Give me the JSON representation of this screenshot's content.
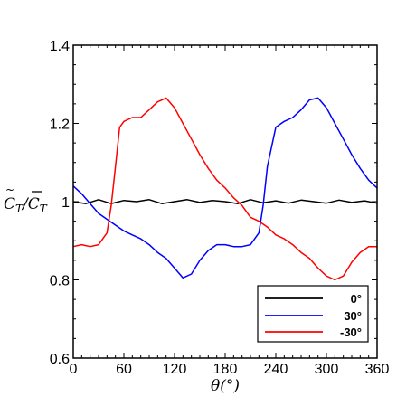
{
  "chart_data": {
    "type": "line",
    "xlabel": "θ(°)",
    "ylabel": "C̃_T/C̄_T",
    "xlim": [
      0,
      360
    ],
    "ylim": [
      0.6,
      1.4
    ],
    "x_ticks": [
      "0",
      "60",
      "120",
      "180",
      "240",
      "300",
      "360"
    ],
    "y_ticks": [
      "0.6",
      "0.8",
      "1",
      "1.2",
      "1.4"
    ],
    "grid": false,
    "legend_position": "bottom-right",
    "series": [
      {
        "name": "0°",
        "color": "#000000",
        "x": [
          0,
          15,
          30,
          45,
          60,
          75,
          90,
          105,
          120,
          135,
          150,
          165,
          180,
          195,
          210,
          225,
          240,
          255,
          270,
          285,
          300,
          315,
          330,
          345,
          360
        ],
        "y": [
          1.0,
          0.995,
          1.005,
          0.995,
          1.003,
          1.0,
          1.005,
          0.995,
          1.0,
          1.005,
          0.998,
          1.003,
          1.0,
          0.995,
          1.005,
          0.997,
          1.002,
          0.996,
          1.004,
          1.0,
          0.996,
          1.004,
          0.998,
          1.002,
          0.996
        ]
      },
      {
        "name": "30°",
        "color": "#0000ff",
        "x": [
          0,
          10,
          20,
          30,
          40,
          50,
          60,
          70,
          80,
          90,
          100,
          110,
          120,
          130,
          140,
          150,
          160,
          170,
          180,
          190,
          200,
          210,
          220,
          225,
          230,
          240,
          250,
          260,
          270,
          280,
          290,
          300,
          310,
          320,
          330,
          340,
          350,
          360
        ],
        "y": [
          1.04,
          1.02,
          0.995,
          0.97,
          0.955,
          0.94,
          0.925,
          0.915,
          0.905,
          0.89,
          0.87,
          0.855,
          0.83,
          0.805,
          0.815,
          0.85,
          0.875,
          0.89,
          0.89,
          0.885,
          0.885,
          0.89,
          0.92,
          0.99,
          1.09,
          1.19,
          1.205,
          1.215,
          1.235,
          1.26,
          1.265,
          1.24,
          1.2,
          1.16,
          1.12,
          1.085,
          1.055,
          1.035
        ]
      },
      {
        "name": "-30°",
        "color": "#ff0000",
        "x": [
          0,
          10,
          20,
          30,
          40,
          45,
          50,
          55,
          60,
          70,
          80,
          90,
          100,
          110,
          120,
          130,
          140,
          150,
          160,
          170,
          180,
          190,
          200,
          210,
          220,
          230,
          240,
          250,
          260,
          270,
          280,
          290,
          300,
          310,
          320,
          330,
          340,
          350,
          360
        ],
        "y": [
          0.885,
          0.89,
          0.885,
          0.89,
          0.92,
          0.99,
          1.09,
          1.19,
          1.205,
          1.215,
          1.215,
          1.235,
          1.255,
          1.265,
          1.24,
          1.2,
          1.16,
          1.12,
          1.085,
          1.055,
          1.035,
          1.01,
          0.99,
          0.96,
          0.95,
          0.935,
          0.915,
          0.905,
          0.89,
          0.87,
          0.855,
          0.83,
          0.81,
          0.8,
          0.81,
          0.845,
          0.87,
          0.885,
          0.885
        ]
      }
    ]
  },
  "legend": {
    "entries": [
      "0°",
      "30°",
      "-30°"
    ]
  }
}
